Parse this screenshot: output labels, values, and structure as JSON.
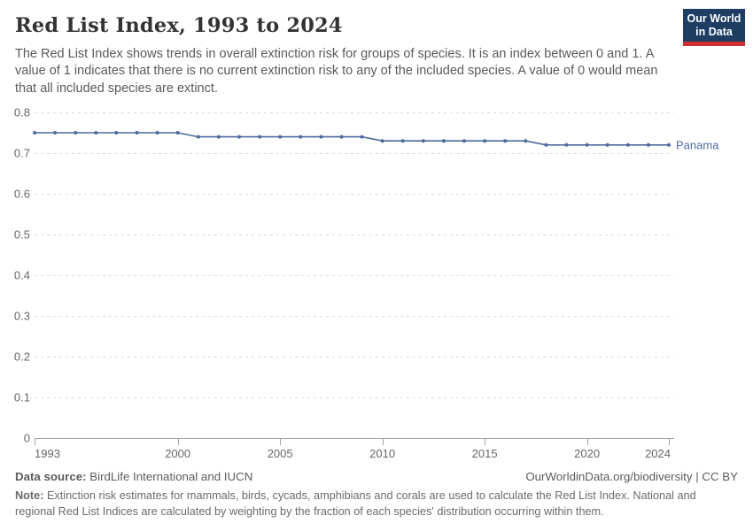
{
  "header": {
    "title": "Red List Index, 1993 to 2024",
    "subtitle": "The Red List Index shows trends in overall extinction risk for groups of species. It is an index between 0 and 1. A value of 1 indicates that there is no current extinction risk to any of the included species. A value of 0 would mean that all included species are extinct.",
    "logo": {
      "line1": "Our World",
      "line2": "in Data",
      "bg_color": "#1d3d63",
      "accent_color": "#cf3034"
    }
  },
  "chart_data": {
    "type": "line",
    "title": "Red List Index, 1993 to 2024",
    "xlabel": "",
    "ylabel": "",
    "x": [
      1993,
      1994,
      1995,
      1996,
      1997,
      1998,
      1999,
      2000,
      2001,
      2002,
      2003,
      2004,
      2005,
      2006,
      2007,
      2008,
      2009,
      2010,
      2011,
      2012,
      2013,
      2014,
      2015,
      2016,
      2017,
      2018,
      2019,
      2020,
      2021,
      2022,
      2023,
      2024
    ],
    "series": [
      {
        "name": "Panama",
        "color": "#4C6A9C",
        "values": [
          0.75,
          0.75,
          0.75,
          0.75,
          0.75,
          0.75,
          0.75,
          0.75,
          0.74,
          0.74,
          0.74,
          0.74,
          0.74,
          0.74,
          0.74,
          0.74,
          0.74,
          0.73,
          0.73,
          0.73,
          0.73,
          0.73,
          0.73,
          0.73,
          0.73,
          0.72,
          0.72,
          0.72,
          0.72,
          0.72,
          0.72,
          0.72
        ]
      }
    ],
    "xlim": [
      1993,
      2024
    ],
    "ylim": [
      0,
      0.8
    ],
    "yticks": [
      0,
      0.1,
      0.2,
      0.3,
      0.4,
      0.5,
      0.6,
      0.7,
      0.8
    ],
    "xticks": [
      1993,
      2000,
      2005,
      2010,
      2015,
      2020,
      2024
    ],
    "grid": "horizontal-dashed",
    "legend_position": "end-of-line-label",
    "colors": {
      "gridline": "#d9d9d9",
      "axis": "#a3a3a3",
      "tick_label": "#666666"
    }
  },
  "footer": {
    "data_source_label": "Data source:",
    "data_source_value": "BirdLife International and IUCN",
    "attribution": "OurWorldinData.org/biodiversity | CC BY",
    "note_label": "Note:",
    "note_value": "Extinction risk estimates for mammals, birds, cycads, amphibians and corals are used to calculate the Red List Index. National and regional Red List Indices are calculated by weighting by the fraction of each species' distribution occurring within them."
  }
}
